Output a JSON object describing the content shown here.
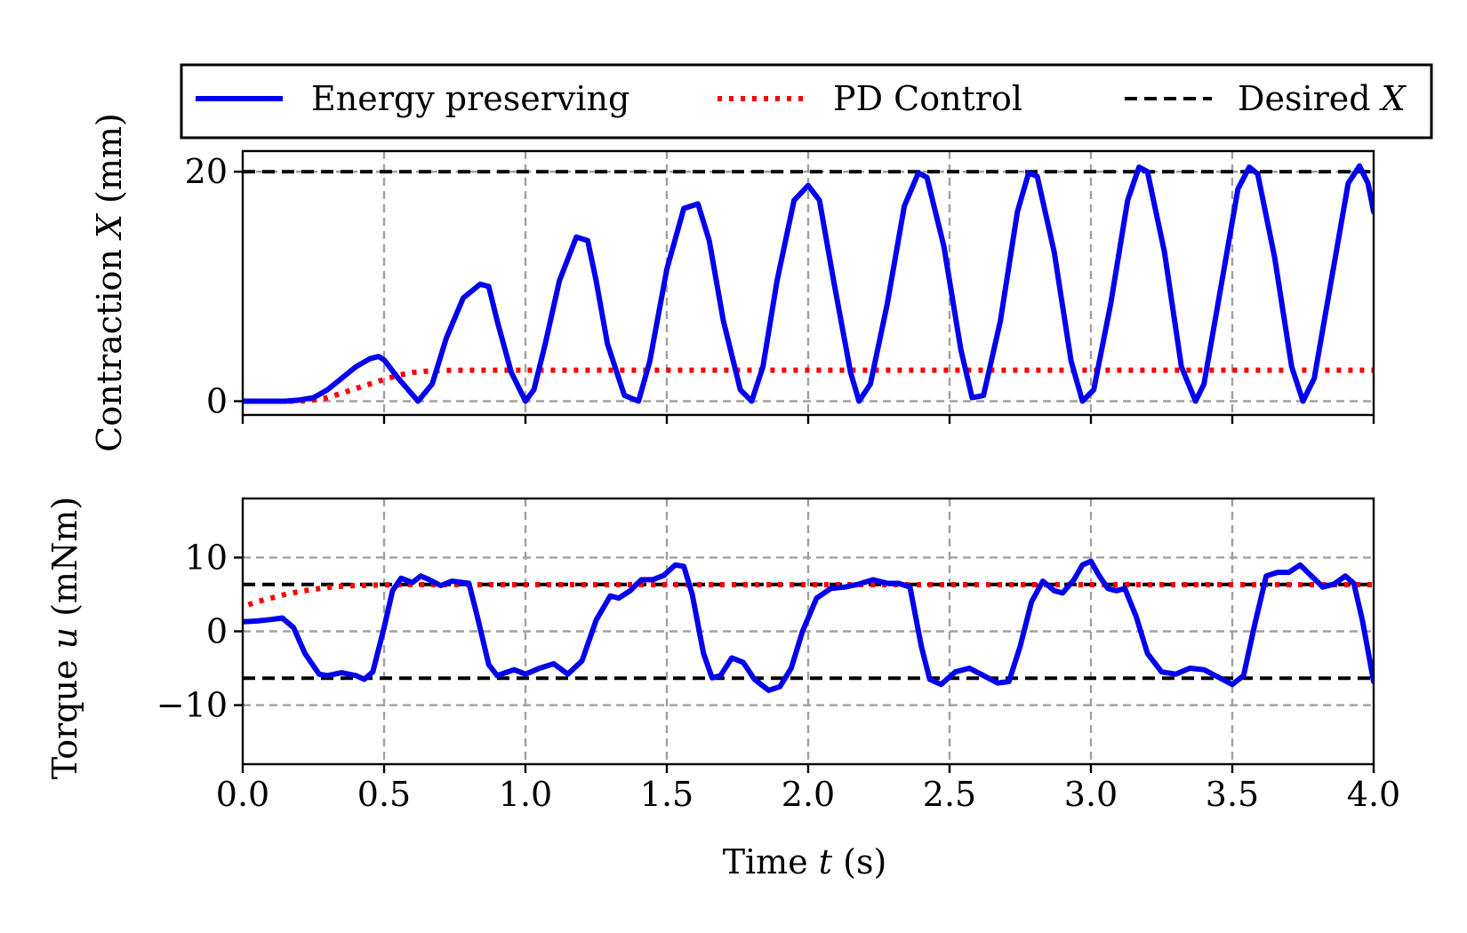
{
  "chart_data": [
    {
      "type": "line",
      "panel": "top",
      "title": "",
      "xlabel": "",
      "ylabel_parts": [
        "Contraction ",
        "X",
        " (mm)"
      ],
      "xlim": [
        0,
        4.0
      ],
      "ylim": [
        -1.2,
        21.8
      ],
      "xticks": [
        0.0,
        0.5,
        1.0,
        1.5,
        2.0,
        2.5,
        3.0,
        3.5,
        4.0
      ],
      "yticks": [
        0,
        20
      ],
      "ytick_labels": [
        "0",
        "20"
      ],
      "grid": true,
      "series": [
        {
          "name": "Energy preserving",
          "color": "#0000ee",
          "style": "solid",
          "x": [
            0.0,
            0.05,
            0.1,
            0.15,
            0.2,
            0.25,
            0.3,
            0.35,
            0.4,
            0.45,
            0.48,
            0.5,
            0.55,
            0.62,
            0.67,
            0.72,
            0.78,
            0.84,
            0.87,
            0.9,
            0.95,
            1.0,
            1.03,
            1.07,
            1.12,
            1.18,
            1.22,
            1.25,
            1.29,
            1.35,
            1.4,
            1.44,
            1.5,
            1.56,
            1.61,
            1.65,
            1.7,
            1.76,
            1.8,
            1.84,
            1.89,
            1.95,
            2.0,
            2.04,
            2.09,
            2.15,
            2.18,
            2.22,
            2.28,
            2.34,
            2.39,
            2.42,
            2.48,
            2.54,
            2.58,
            2.62,
            2.68,
            2.74,
            2.78,
            2.81,
            2.87,
            2.93,
            2.97,
            3.01,
            3.07,
            3.13,
            3.17,
            3.2,
            3.26,
            3.32,
            3.37,
            3.4,
            3.46,
            3.52,
            3.56,
            3.59,
            3.65,
            3.71,
            3.75,
            3.79,
            3.85,
            3.91,
            3.95,
            3.98,
            4.0
          ],
          "y": [
            0,
            0,
            0,
            0,
            0.1,
            0.3,
            1.0,
            2.0,
            3.0,
            3.7,
            3.9,
            3.6,
            2.0,
            0.0,
            1.5,
            5.5,
            9.0,
            10.2,
            10.0,
            7.0,
            2.5,
            0.0,
            1.0,
            5.0,
            10.5,
            14.3,
            14.0,
            10.5,
            5.0,
            0.5,
            0.0,
            3.5,
            11.5,
            16.8,
            17.2,
            14.0,
            7.0,
            1.0,
            0.0,
            3.0,
            10.5,
            17.5,
            18.8,
            17.5,
            10.5,
            2.5,
            0.0,
            1.5,
            8.5,
            17.0,
            19.9,
            19.5,
            13.5,
            4.5,
            0.3,
            0.5,
            7.0,
            16.5,
            19.9,
            19.6,
            13.0,
            3.5,
            0.0,
            1.0,
            8.5,
            17.5,
            20.4,
            20.0,
            13.0,
            3.0,
            0.0,
            1.5,
            10.0,
            18.5,
            20.4,
            19.8,
            12.5,
            3.0,
            0.0,
            2.0,
            10.5,
            19.0,
            20.5,
            19.0,
            16.5
          ]
        },
        {
          "name": "PD Control",
          "color": "#ff0000",
          "style": "dotted",
          "x": [
            0.0,
            0.2,
            0.25,
            0.3,
            0.35,
            0.4,
            0.45,
            0.5,
            0.55,
            0.6,
            0.65,
            0.7,
            0.8,
            1.0,
            4.0
          ],
          "y": [
            0,
            0,
            0.1,
            0.3,
            0.7,
            1.1,
            1.5,
            1.9,
            2.25,
            2.5,
            2.62,
            2.68,
            2.7,
            2.7,
            2.7
          ]
        },
        {
          "name": "Desired X",
          "color": "#000000",
          "style": "dashed",
          "x": [
            0.0,
            4.0
          ],
          "y": [
            20,
            20
          ]
        }
      ]
    },
    {
      "type": "line",
      "panel": "bottom",
      "title": "",
      "xlabel_parts": [
        "Time ",
        "t",
        " (s)"
      ],
      "ylabel_parts": [
        "Torque ",
        "u",
        " (mNm)"
      ],
      "xlim": [
        0,
        4.0
      ],
      "ylim": [
        -18,
        18
      ],
      "xticks": [
        0.0,
        0.5,
        1.0,
        1.5,
        2.0,
        2.5,
        3.0,
        3.5,
        4.0
      ],
      "xtick_labels": [
        "0.0",
        "0.5",
        "1.0",
        "1.5",
        "2.0",
        "2.5",
        "3.0",
        "3.5",
        "4.0"
      ],
      "yticks": [
        -10,
        0,
        10
      ],
      "ytick_labels": [
        "−10",
        "0",
        "10"
      ],
      "grid": true,
      "series": [
        {
          "name": "Energy preserving",
          "color": "#0000ee",
          "style": "solid",
          "x": [
            0.0,
            0.05,
            0.1,
            0.14,
            0.18,
            0.22,
            0.27,
            0.3,
            0.35,
            0.4,
            0.43,
            0.46,
            0.5,
            0.53,
            0.56,
            0.6,
            0.63,
            0.66,
            0.7,
            0.74,
            0.8,
            0.83,
            0.87,
            0.9,
            0.93,
            0.96,
            1.0,
            1.05,
            1.1,
            1.15,
            1.2,
            1.25,
            1.3,
            1.33,
            1.37,
            1.41,
            1.45,
            1.49,
            1.53,
            1.56,
            1.59,
            1.63,
            1.66,
            1.69,
            1.73,
            1.77,
            1.81,
            1.86,
            1.9,
            1.94,
            1.98,
            2.03,
            2.08,
            2.13,
            2.18,
            2.23,
            2.28,
            2.32,
            2.36,
            2.4,
            2.43,
            2.47,
            2.52,
            2.57,
            2.62,
            2.67,
            2.71,
            2.75,
            2.79,
            2.83,
            2.87,
            2.9,
            2.94,
            2.97,
            3.0,
            3.03,
            3.06,
            3.09,
            3.12,
            3.16,
            3.2,
            3.25,
            3.3,
            3.35,
            3.4,
            3.45,
            3.5,
            3.54,
            3.58,
            3.62,
            3.66,
            3.7,
            3.74,
            3.78,
            3.82,
            3.86,
            3.9,
            3.93,
            3.96,
            4.0
          ],
          "y": [
            1.3,
            1.4,
            1.6,
            1.8,
            0.5,
            -3.0,
            -5.8,
            -6.0,
            -5.6,
            -6.0,
            -6.5,
            -5.5,
            0.5,
            5.5,
            7.2,
            6.6,
            7.5,
            7.0,
            6.2,
            6.8,
            6.5,
            2.0,
            -4.5,
            -6.0,
            -5.6,
            -5.2,
            -5.8,
            -5.0,
            -4.4,
            -5.8,
            -4.0,
            1.5,
            4.8,
            4.5,
            5.5,
            7.0,
            7.0,
            7.6,
            9.0,
            8.8,
            5.0,
            -3.0,
            -6.3,
            -6.0,
            -3.6,
            -4.2,
            -6.5,
            -8.0,
            -7.5,
            -5.0,
            0.0,
            4.5,
            5.8,
            6.0,
            6.4,
            7.0,
            6.5,
            6.5,
            6.0,
            -2.0,
            -6.5,
            -7.2,
            -5.5,
            -5.0,
            -6.0,
            -7.0,
            -6.8,
            -2.0,
            4.0,
            6.8,
            5.5,
            5.2,
            7.0,
            9.0,
            9.5,
            7.5,
            5.8,
            5.5,
            5.8,
            2.0,
            -3.0,
            -5.5,
            -5.8,
            -5.0,
            -5.2,
            -6.2,
            -7.2,
            -6.0,
            1.0,
            7.5,
            8.0,
            8.0,
            9.0,
            7.5,
            6.0,
            6.4,
            7.5,
            6.5,
            1.5,
            -6.8
          ]
        },
        {
          "name": "PD Control",
          "color": "#ff0000",
          "style": "dotted",
          "x": [
            0.02,
            0.05,
            0.1,
            0.15,
            0.2,
            0.25,
            0.3,
            0.35,
            0.4,
            0.45,
            0.5,
            0.55,
            0.6,
            0.7,
            0.8,
            1.0,
            4.0
          ],
          "y": [
            3.6,
            4.0,
            4.5,
            5.0,
            5.4,
            5.7,
            5.95,
            6.1,
            6.2,
            6.25,
            6.28,
            6.3,
            6.32,
            6.32,
            6.32,
            6.32,
            6.32
          ]
        },
        {
          "name": "Desired X",
          "color": "#000000",
          "style": "dashed",
          "segments": [
            {
              "x": [
                0.0,
                4.0
              ],
              "y": [
                6.35,
                6.35
              ]
            },
            {
              "x": [
                0.0,
                4.0
              ],
              "y": [
                -6.35,
                -6.35
              ]
            }
          ]
        }
      ]
    }
  ],
  "legend": {
    "position": "top",
    "entries": [
      {
        "label": "Energy preserving",
        "color": "#0000ee",
        "style": "solid"
      },
      {
        "label": "PD Control",
        "color": "#ff0000",
        "style": "dotted"
      },
      {
        "label_parts": [
          "Desired ",
          "X"
        ],
        "color": "#000000",
        "style": "dashed"
      }
    ]
  }
}
